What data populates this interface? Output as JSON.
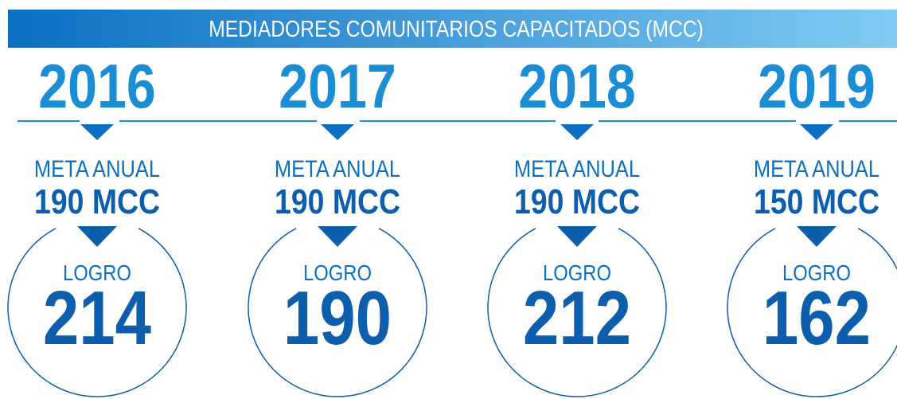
{
  "header": {
    "title": "MEDIADORES COMUNITARIOS CAPACITADOS (MCC)"
  },
  "years": [
    {
      "year": "2016",
      "meta_label": "META ANUAL",
      "meta_value": "190 MCC",
      "logro_label": "LOGRO",
      "logro_value": "214"
    },
    {
      "year": "2017",
      "meta_label": "META ANUAL",
      "meta_value": "190 MCC",
      "logro_label": "LOGRO",
      "logro_value": "190"
    },
    {
      "year": "2018",
      "meta_label": "META ANUAL",
      "meta_value": "190 MCC",
      "logro_label": "LOGRO",
      "logro_value": "212"
    },
    {
      "year": "2019",
      "meta_label": "META ANUAL",
      "meta_value": "150 MCC",
      "logro_label": "LOGRO",
      "logro_value": "162"
    }
  ]
}
